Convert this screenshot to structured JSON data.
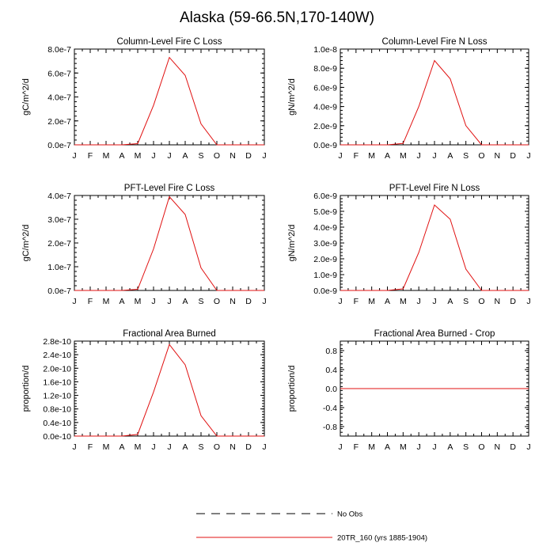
{
  "title": "Alaska (59-66.5N,170-140W)",
  "legend": [
    {
      "label": "No Obs",
      "style": "dashed",
      "color": "#000000"
    },
    {
      "label": "20TR_160 (yrs 1885-1904)",
      "style": "solid",
      "color": "#e01010"
    }
  ],
  "chart_data": [
    {
      "type": "line",
      "title": "Column-Level Fire C Loss",
      "ylabel": "gC/m^2/d",
      "categories": [
        "J",
        "F",
        "M",
        "A",
        "M",
        "J",
        "J",
        "A",
        "S",
        "O",
        "N",
        "D",
        "J"
      ],
      "ylim": [
        0,
        8e-07
      ],
      "yticks": [
        0,
        2e-07,
        4e-07,
        6e-07,
        8e-07
      ],
      "ytick_labels": [
        "0.0e-7",
        "2.0e-7",
        "4.0e-7",
        "6.0e-7",
        "8.0e-7"
      ],
      "series": [
        {
          "name": "20TR_160 (yrs 1885-1904)",
          "values": [
            0,
            0,
            0,
            0,
            1e-08,
            3.3e-07,
            7.3e-07,
            5.8e-07,
            1.75e-07,
            0,
            0,
            0,
            0
          ]
        }
      ]
    },
    {
      "type": "line",
      "title": "Column-Level Fire N Loss",
      "ylabel": "gN/m^2/d",
      "categories": [
        "J",
        "F",
        "M",
        "A",
        "M",
        "J",
        "J",
        "A",
        "S",
        "O",
        "N",
        "D",
        "J"
      ],
      "ylim": [
        0,
        1e-08
      ],
      "yticks": [
        0,
        2e-09,
        4e-09,
        6e-09,
        8e-09,
        1e-08
      ],
      "ytick_labels": [
        "0.0e-9",
        "2.0e-9",
        "4.0e-9",
        "6.0e-9",
        "8.0e-9",
        "1.0e-8"
      ],
      "series": [
        {
          "name": "20TR_160 (yrs 1885-1904)",
          "values": [
            0,
            0,
            0,
            0,
            1.5e-10,
            4e-09,
            8.8e-09,
            6.9e-09,
            2e-09,
            0,
            0,
            0,
            0
          ]
        }
      ]
    },
    {
      "type": "line",
      "title": "PFT-Level Fire C Loss",
      "ylabel": "gC/m^2/d",
      "categories": [
        "J",
        "F",
        "M",
        "A",
        "M",
        "J",
        "J",
        "A",
        "S",
        "O",
        "N",
        "D",
        "J"
      ],
      "ylim": [
        0,
        4e-07
      ],
      "yticks": [
        0,
        1e-07,
        2e-07,
        3e-07,
        4e-07
      ],
      "ytick_labels": [
        "0.0e-7",
        "1.0e-7",
        "2.0e-7",
        "3.0e-7",
        "4.0e-7"
      ],
      "series": [
        {
          "name": "20TR_160 (yrs 1885-1904)",
          "values": [
            0,
            0,
            0,
            0,
            5e-09,
            1.75e-07,
            3.95e-07,
            3.2e-07,
            9.5e-08,
            0,
            0,
            0,
            0
          ]
        }
      ]
    },
    {
      "type": "line",
      "title": "PFT-Level Fire N Loss",
      "ylabel": "gN/m^2/d",
      "categories": [
        "J",
        "F",
        "M",
        "A",
        "M",
        "J",
        "J",
        "A",
        "S",
        "O",
        "N",
        "D",
        "J"
      ],
      "ylim": [
        0,
        6e-09
      ],
      "yticks": [
        0,
        1e-09,
        2e-09,
        3e-09,
        4e-09,
        5e-09,
        6e-09
      ],
      "ytick_labels": [
        "0.0e-9",
        "1.0e-9",
        "2.0e-9",
        "3.0e-9",
        "4.0e-9",
        "5.0e-9",
        "6.0e-9"
      ],
      "series": [
        {
          "name": "20TR_160 (yrs 1885-1904)",
          "values": [
            0,
            0,
            0,
            0,
            1e-10,
            2.4e-09,
            5.4e-09,
            4.5e-09,
            1.35e-09,
            0,
            0,
            0,
            0
          ]
        }
      ]
    },
    {
      "type": "line",
      "title": "Fractional Area Burned",
      "ylabel": "proportion/d",
      "categories": [
        "J",
        "F",
        "M",
        "A",
        "M",
        "J",
        "J",
        "A",
        "S",
        "O",
        "N",
        "D",
        "J"
      ],
      "ylim": [
        0,
        2.8e-10
      ],
      "yticks": [
        0,
        4e-11,
        8e-11,
        1.2e-10,
        1.6e-10,
        2e-10,
        2.4e-10,
        2.8e-10
      ],
      "ytick_labels": [
        "0.0e-10",
        "0.4e-10",
        "0.8e-10",
        "1.2e-10",
        "1.6e-10",
        "2.0e-10",
        "2.4e-10",
        "2.8e-10"
      ],
      "series": [
        {
          "name": "20TR_160 (yrs 1885-1904)",
          "values": [
            0,
            0,
            0,
            0,
            5e-12,
            1.3e-10,
            2.7e-10,
            2.1e-10,
            6e-11,
            0,
            0,
            0,
            0
          ]
        }
      ]
    },
    {
      "type": "line",
      "title": "Fractional Area Burned - Crop",
      "ylabel": "proportion/d",
      "categories": [
        "J",
        "F",
        "M",
        "A",
        "M",
        "J",
        "J",
        "A",
        "S",
        "O",
        "N",
        "D",
        "J"
      ],
      "ylim": [
        -1.0,
        1.0
      ],
      "yticks": [
        -0.8,
        -0.4,
        0,
        0.4,
        0.8
      ],
      "ytick_labels": [
        "-0.8",
        "-0.4",
        "0.0",
        "0.4",
        "0.8"
      ],
      "series": [
        {
          "name": "20TR_160 (yrs 1885-1904)",
          "values": [
            0,
            0,
            0,
            0,
            0,
            0,
            0,
            0,
            0,
            0,
            0,
            0,
            0
          ]
        }
      ]
    }
  ]
}
